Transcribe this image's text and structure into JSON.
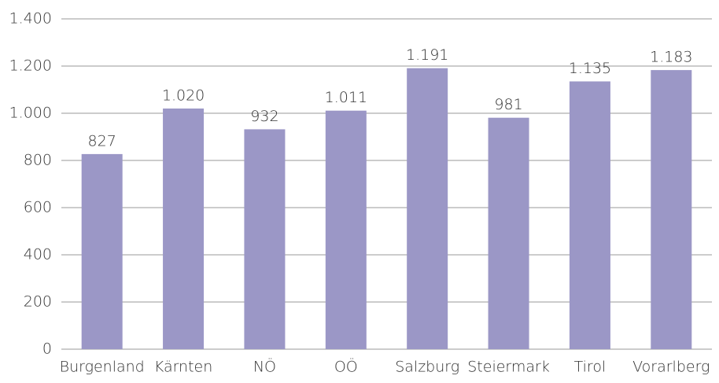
{
  "chart_data": {
    "type": "bar",
    "categories": [
      "Burgenland",
      "Kärnten",
      "NÖ",
      "OÖ",
      "Salzburg",
      "Steiermark",
      "Tirol",
      "Vorarlberg"
    ],
    "values": [
      827,
      1020,
      932,
      1011,
      1191,
      981,
      1135,
      1183
    ],
    "value_labels": [
      "827",
      "1.020",
      "932",
      "1.011",
      "1.191",
      "981",
      "1.135",
      "1.183"
    ],
    "color": "#9b97c6",
    "ylim": [
      0,
      1400
    ],
    "yticks": [
      0,
      200,
      400,
      600,
      800,
      {
        "value": 1000,
        "label": "1.000"
      },
      {
        "value": 1200,
        "label": "1.200"
      },
      {
        "value": 1400,
        "label": "1.400"
      }
    ],
    "grid": true
  }
}
